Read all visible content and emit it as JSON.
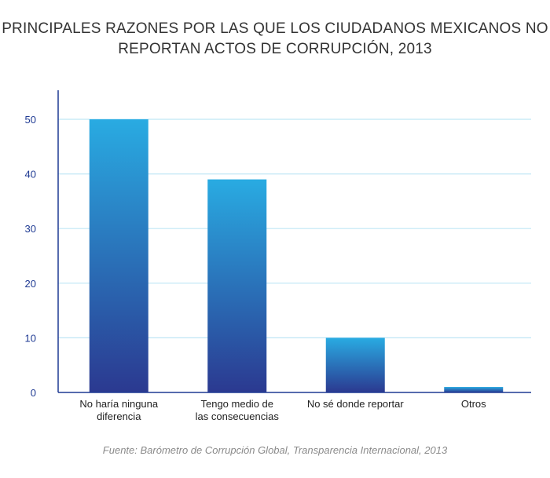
{
  "chart_data": {
    "type": "bar",
    "title_lines": [
      "PRINCIPALES RAZONES POR LAS QUE LOS CIUDADANOS MEXICANOS NO",
      "REPORTAN ACTOS DE CORRUPCIÓN, 2013"
    ],
    "categories": [
      [
        "No haría ninguna",
        "diferencia"
      ],
      [
        "Tengo medio de",
        "las consecuencias"
      ],
      [
        "No sé donde reportar"
      ],
      [
        "Otros"
      ]
    ],
    "values": [
      50,
      39,
      10,
      1
    ],
    "ylim": [
      0,
      55
    ],
    "yticks": [
      0,
      10,
      20,
      30,
      40,
      50
    ],
    "grid": true,
    "source": "Fuente: Barómetro de Corrupción Global, Transparencia Internacional, 2013"
  },
  "colors": {
    "bar_top": "#29abe2",
    "bar_bottom": "#2b3990",
    "grid": "#bfe6f5",
    "axis": "#1f3a93",
    "tick_text": "#1f3a93",
    "category_text": "#222222"
  }
}
